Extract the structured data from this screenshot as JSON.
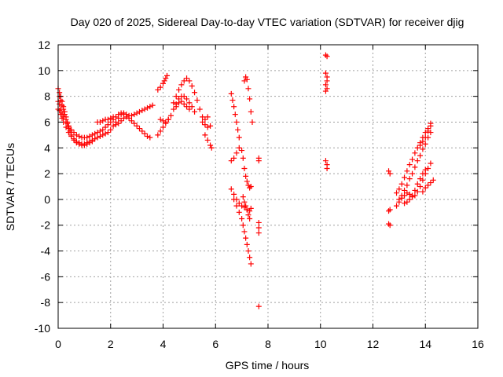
{
  "chart_data": {
    "type": "scatter",
    "title": "Day 020 of 2025, Sidereal Day-to-day VTEC variation (SDTVAR) for receiver djig",
    "xlabel": "GPS time / hours",
    "ylabel": "SDTVAR / TECUs",
    "xlim": [
      0,
      16
    ],
    "ylim": [
      -10,
      12
    ],
    "x_ticks": [
      "0",
      "2",
      "4",
      "6",
      "8",
      "10",
      "12",
      "14",
      "16"
    ],
    "y_ticks": [
      "12",
      "10",
      "8",
      "6",
      "4",
      "2",
      "0",
      "-2",
      "-4",
      "-6",
      "-8",
      "-10"
    ],
    "grid": true,
    "marker": "+",
    "series_color": "#ff0000",
    "series": [
      {
        "points": [
          [
            0.0,
            8.6
          ],
          [
            0.05,
            8.3
          ],
          [
            0.1,
            8.0
          ],
          [
            0.15,
            7.6
          ],
          [
            0.2,
            7.2
          ],
          [
            0.25,
            6.8
          ],
          [
            0.3,
            6.4
          ],
          [
            0.35,
            6.0
          ],
          [
            0.4,
            5.6
          ],
          [
            0.45,
            5.3
          ],
          [
            0.5,
            5.0
          ],
          [
            0.6,
            4.7
          ],
          [
            0.7,
            4.5
          ],
          [
            0.8,
            4.4
          ],
          [
            0.9,
            4.3
          ],
          [
            1.0,
            4.3
          ],
          [
            1.1,
            4.4
          ],
          [
            1.2,
            4.5
          ],
          [
            1.3,
            4.6
          ],
          [
            1.4,
            4.7
          ],
          [
            1.5,
            4.8
          ],
          [
            1.6,
            4.9
          ],
          [
            1.7,
            5.0
          ],
          [
            1.8,
            5.1
          ],
          [
            1.9,
            5.2
          ],
          [
            2.0,
            5.4
          ],
          [
            2.1,
            5.7
          ],
          [
            2.2,
            6.0
          ],
          [
            2.3,
            6.3
          ],
          [
            2.4,
            6.6
          ],
          [
            2.5,
            6.7
          ],
          [
            0.0,
            7.6
          ],
          [
            0.05,
            7.4
          ],
          [
            0.1,
            7.0
          ],
          [
            0.15,
            6.7
          ],
          [
            0.2,
            6.4
          ],
          [
            0.3,
            6.0
          ],
          [
            0.4,
            5.7
          ],
          [
            0.5,
            5.4
          ],
          [
            0.6,
            5.2
          ],
          [
            0.7,
            5.0
          ],
          [
            0.8,
            4.9
          ],
          [
            0.9,
            4.8
          ],
          [
            1.0,
            4.8
          ],
          [
            1.1,
            4.8
          ],
          [
            1.2,
            4.9
          ],
          [
            1.3,
            5.0
          ],
          [
            1.4,
            5.1
          ],
          [
            1.5,
            5.2
          ],
          [
            1.6,
            5.3
          ],
          [
            1.7,
            5.4
          ],
          [
            1.8,
            5.6
          ],
          [
            1.9,
            5.8
          ],
          [
            2.0,
            6.0
          ],
          [
            2.1,
            6.2
          ],
          [
            2.2,
            6.4
          ],
          [
            2.3,
            6.6
          ],
          [
            2.4,
            6.7
          ],
          [
            2.5,
            6.7
          ],
          [
            2.6,
            6.6
          ],
          [
            2.7,
            6.5
          ],
          [
            2.8,
            6.5
          ],
          [
            2.9,
            6.6
          ],
          [
            3.0,
            6.7
          ],
          [
            3.1,
            6.8
          ],
          [
            3.2,
            6.9
          ],
          [
            3.3,
            7.0
          ],
          [
            3.4,
            7.1
          ],
          [
            3.5,
            7.2
          ],
          [
            3.6,
            7.3
          ],
          [
            0.0,
            7.0
          ],
          [
            0.05,
            6.9
          ],
          [
            0.1,
            6.6
          ],
          [
            0.15,
            6.3
          ],
          [
            0.2,
            6.0
          ],
          [
            0.3,
            5.6
          ],
          [
            0.4,
            5.2
          ],
          [
            0.5,
            4.9
          ],
          [
            0.6,
            4.6
          ],
          [
            0.7,
            4.4
          ],
          [
            0.8,
            4.3
          ],
          [
            0.9,
            4.2
          ],
          [
            1.0,
            4.2
          ],
          [
            1.1,
            4.3
          ],
          [
            1.2,
            4.4
          ],
          [
            1.3,
            4.5
          ],
          [
            0.05,
            8.0
          ],
          [
            0.1,
            7.7
          ],
          [
            0.15,
            7.3
          ],
          [
            0.2,
            7.0
          ],
          [
            0.25,
            6.6
          ],
          [
            0.3,
            6.2
          ],
          [
            0.35,
            5.9
          ],
          [
            0.4,
            5.5
          ],
          [
            1.5,
            6.0
          ],
          [
            1.6,
            6.0
          ],
          [
            1.7,
            6.1
          ],
          [
            1.8,
            6.2
          ],
          [
            1.9,
            6.2
          ],
          [
            2.0,
            6.3
          ],
          [
            2.1,
            6.4
          ],
          [
            2.2,
            5.8
          ],
          [
            2.3,
            5.9
          ],
          [
            2.4,
            6.1
          ],
          [
            2.5,
            6.3
          ],
          [
            2.6,
            6.4
          ],
          [
            2.7,
            6.3
          ],
          [
            2.8,
            6.1
          ],
          [
            2.9,
            5.9
          ],
          [
            3.0,
            5.7
          ],
          [
            3.1,
            5.5
          ],
          [
            3.2,
            5.3
          ],
          [
            3.3,
            5.1
          ],
          [
            3.4,
            4.9
          ],
          [
            3.5,
            4.8
          ],
          [
            3.8,
            5.0
          ],
          [
            3.9,
            5.3
          ],
          [
            4.0,
            5.6
          ],
          [
            4.1,
            5.9
          ],
          [
            4.2,
            6.2
          ],
          [
            3.9,
            6.2
          ],
          [
            4.0,
            6.1
          ],
          [
            4.1,
            6.0
          ],
          [
            4.2,
            6.2
          ],
          [
            3.8,
            8.5
          ],
          [
            3.9,
            8.7
          ],
          [
            4.0,
            9.0
          ],
          [
            4.05,
            9.2
          ],
          [
            4.1,
            9.4
          ],
          [
            4.15,
            9.6
          ],
          [
            4.3,
            6.5
          ],
          [
            4.4,
            7.0
          ],
          [
            4.5,
            7.4
          ],
          [
            4.6,
            7.8
          ],
          [
            4.7,
            8.0
          ],
          [
            4.8,
            8.0
          ],
          [
            4.9,
            7.8
          ],
          [
            5.0,
            7.5
          ],
          [
            5.1,
            7.2
          ],
          [
            5.2,
            6.8
          ],
          [
            4.4,
            7.5
          ],
          [
            4.5,
            8.0
          ],
          [
            4.6,
            8.5
          ],
          [
            4.7,
            8.9
          ],
          [
            4.8,
            9.2
          ],
          [
            4.9,
            9.4
          ],
          [
            5.0,
            9.2
          ],
          [
            5.1,
            8.8
          ],
          [
            5.2,
            8.3
          ],
          [
            5.3,
            7.7
          ],
          [
            5.4,
            7.0
          ],
          [
            5.5,
            6.4
          ],
          [
            5.6,
            6.2
          ],
          [
            5.7,
            6.4
          ],
          [
            4.5,
            7.2
          ],
          [
            4.6,
            7.5
          ],
          [
            4.7,
            7.6
          ],
          [
            4.8,
            7.4
          ],
          [
            4.9,
            7.2
          ],
          [
            5.0,
            7.0
          ],
          [
            5.5,
            6.0
          ],
          [
            5.6,
            5.8
          ],
          [
            5.7,
            5.6
          ],
          [
            5.8,
            5.7
          ],
          [
            5.6,
            5.0
          ],
          [
            5.7,
            4.6
          ],
          [
            5.8,
            4.2
          ],
          [
            5.85,
            4.0
          ],
          [
            6.6,
            8.2
          ],
          [
            6.65,
            7.7
          ],
          [
            6.7,
            7.2
          ],
          [
            6.75,
            6.6
          ],
          [
            6.8,
            6.0
          ],
          [
            6.85,
            5.4
          ],
          [
            6.9,
            4.8
          ],
          [
            6.6,
            3.0
          ],
          [
            6.7,
            3.2
          ],
          [
            6.8,
            3.6
          ],
          [
            6.9,
            4.0
          ],
          [
            7.0,
            3.8
          ],
          [
            7.05,
            3.2
          ],
          [
            7.1,
            2.4
          ],
          [
            7.15,
            1.8
          ],
          [
            7.2,
            1.4
          ],
          [
            7.25,
            1.1
          ],
          [
            7.3,
            0.9
          ],
          [
            7.35,
            1.0
          ],
          [
            7.1,
            9.2
          ],
          [
            7.15,
            9.5
          ],
          [
            7.2,
            9.3
          ],
          [
            7.25,
            8.6
          ],
          [
            7.3,
            7.8
          ],
          [
            7.35,
            6.8
          ],
          [
            7.4,
            6.0
          ],
          [
            6.6,
            0.8
          ],
          [
            6.7,
            0.4
          ],
          [
            6.8,
            0.0
          ],
          [
            6.9,
            -0.3
          ],
          [
            7.0,
            -0.5
          ],
          [
            7.1,
            -0.6
          ],
          [
            7.2,
            -0.8
          ],
          [
            7.3,
            -0.9
          ],
          [
            7.35,
            -0.7
          ],
          [
            6.7,
            0.0
          ],
          [
            6.8,
            -0.5
          ],
          [
            6.9,
            -1.0
          ],
          [
            7.0,
            -1.5
          ],
          [
            7.05,
            -2.0
          ],
          [
            7.1,
            -2.5
          ],
          [
            7.15,
            -3.0
          ],
          [
            7.2,
            -3.5
          ],
          [
            7.25,
            -4.0
          ],
          [
            7.3,
            -4.5
          ],
          [
            7.35,
            -5.0
          ],
          [
            7.05,
            0.2
          ],
          [
            7.1,
            -0.2
          ],
          [
            7.15,
            -0.5
          ],
          [
            7.2,
            -0.8
          ],
          [
            7.25,
            -1.2
          ],
          [
            7.3,
            -1.5
          ],
          [
            7.65,
            3.2
          ],
          [
            7.65,
            3.0
          ],
          [
            7.65,
            -1.8
          ],
          [
            7.65,
            -2.2
          ],
          [
            7.65,
            -2.6
          ],
          [
            7.65,
            -8.3
          ],
          [
            10.2,
            11.2
          ],
          [
            10.25,
            11.1
          ],
          [
            10.2,
            9.8
          ],
          [
            10.25,
            9.5
          ],
          [
            10.25,
            9.2
          ],
          [
            10.2,
            8.9
          ],
          [
            10.25,
            8.6
          ],
          [
            10.2,
            8.4
          ],
          [
            10.2,
            3.0
          ],
          [
            10.25,
            2.7
          ],
          [
            10.25,
            2.4
          ],
          [
            12.6,
            2.2
          ],
          [
            12.65,
            2.0
          ],
          [
            12.6,
            -0.9
          ],
          [
            12.65,
            -0.8
          ],
          [
            12.6,
            -1.9
          ],
          [
            12.65,
            -2.0
          ],
          [
            12.9,
            0.5
          ],
          [
            13.0,
            0.8
          ],
          [
            13.1,
            1.2
          ],
          [
            13.2,
            1.7
          ],
          [
            13.3,
            2.2
          ],
          [
            13.4,
            2.7
          ],
          [
            13.5,
            3.1
          ],
          [
            13.6,
            3.6
          ],
          [
            13.7,
            4.0
          ],
          [
            13.8,
            4.4
          ],
          [
            13.9,
            4.8
          ],
          [
            14.0,
            5.2
          ],
          [
            14.1,
            5.5
          ],
          [
            14.2,
            5.9
          ],
          [
            13.0,
            0.0
          ],
          [
            13.1,
            0.3
          ],
          [
            13.2,
            0.7
          ],
          [
            13.3,
            1.1
          ],
          [
            13.4,
            1.6
          ],
          [
            13.5,
            2.0
          ],
          [
            13.6,
            2.5
          ],
          [
            13.7,
            3.0
          ],
          [
            13.8,
            3.4
          ],
          [
            13.9,
            3.9
          ],
          [
            14.0,
            4.3
          ],
          [
            14.1,
            4.8
          ],
          [
            14.2,
            5.2
          ],
          [
            12.9,
            -0.5
          ],
          [
            13.0,
            -0.2
          ],
          [
            13.1,
            0.1
          ],
          [
            13.2,
            0.3
          ],
          [
            13.3,
            0.5
          ],
          [
            13.4,
            0.4
          ],
          [
            13.5,
            0.2
          ],
          [
            13.6,
            0.3
          ],
          [
            13.7,
            0.6
          ],
          [
            13.8,
            1.0
          ],
          [
            13.9,
            1.5
          ],
          [
            14.0,
            2.0
          ],
          [
            14.1,
            2.4
          ],
          [
            14.2,
            2.8
          ],
          [
            13.2,
            -0.3
          ],
          [
            13.3,
            -0.2
          ],
          [
            13.4,
            0.0
          ],
          [
            13.5,
            0.3
          ],
          [
            13.6,
            0.7
          ],
          [
            13.7,
            1.2
          ],
          [
            13.8,
            1.6
          ],
          [
            13.9,
            2.0
          ],
          [
            14.0,
            2.3
          ],
          [
            13.9,
            0.6
          ],
          [
            14.0,
            0.9
          ],
          [
            14.1,
            1.1
          ],
          [
            14.2,
            1.3
          ],
          [
            14.3,
            1.5
          ],
          [
            13.8,
            4.2
          ],
          [
            13.9,
            4.5
          ],
          [
            14.0,
            4.8
          ],
          [
            14.1,
            5.3
          ],
          [
            14.2,
            5.7
          ]
        ]
      }
    ]
  }
}
